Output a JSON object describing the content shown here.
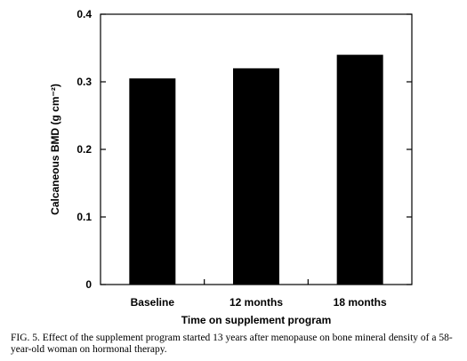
{
  "chart_data": {
    "type": "bar",
    "categories": [
      "Baseline",
      "12 months",
      "18 months"
    ],
    "values": [
      0.305,
      0.32,
      0.34
    ],
    "ylim": [
      0,
      0.4
    ],
    "yticks": [
      "0",
      "0.1",
      "0.2",
      "0.3",
      "0.4"
    ],
    "xlabel": "Time on supplement program",
    "ylabel": "Calcaneous BMD (g cm⁻²)",
    "grid": false,
    "legend": "none",
    "bar_color": "#000000"
  },
  "caption": "FIG. 5.  Effect of the supplement program started 13 years after menopause on bone mineral density of a 58-year-old woman on hormonal therapy."
}
